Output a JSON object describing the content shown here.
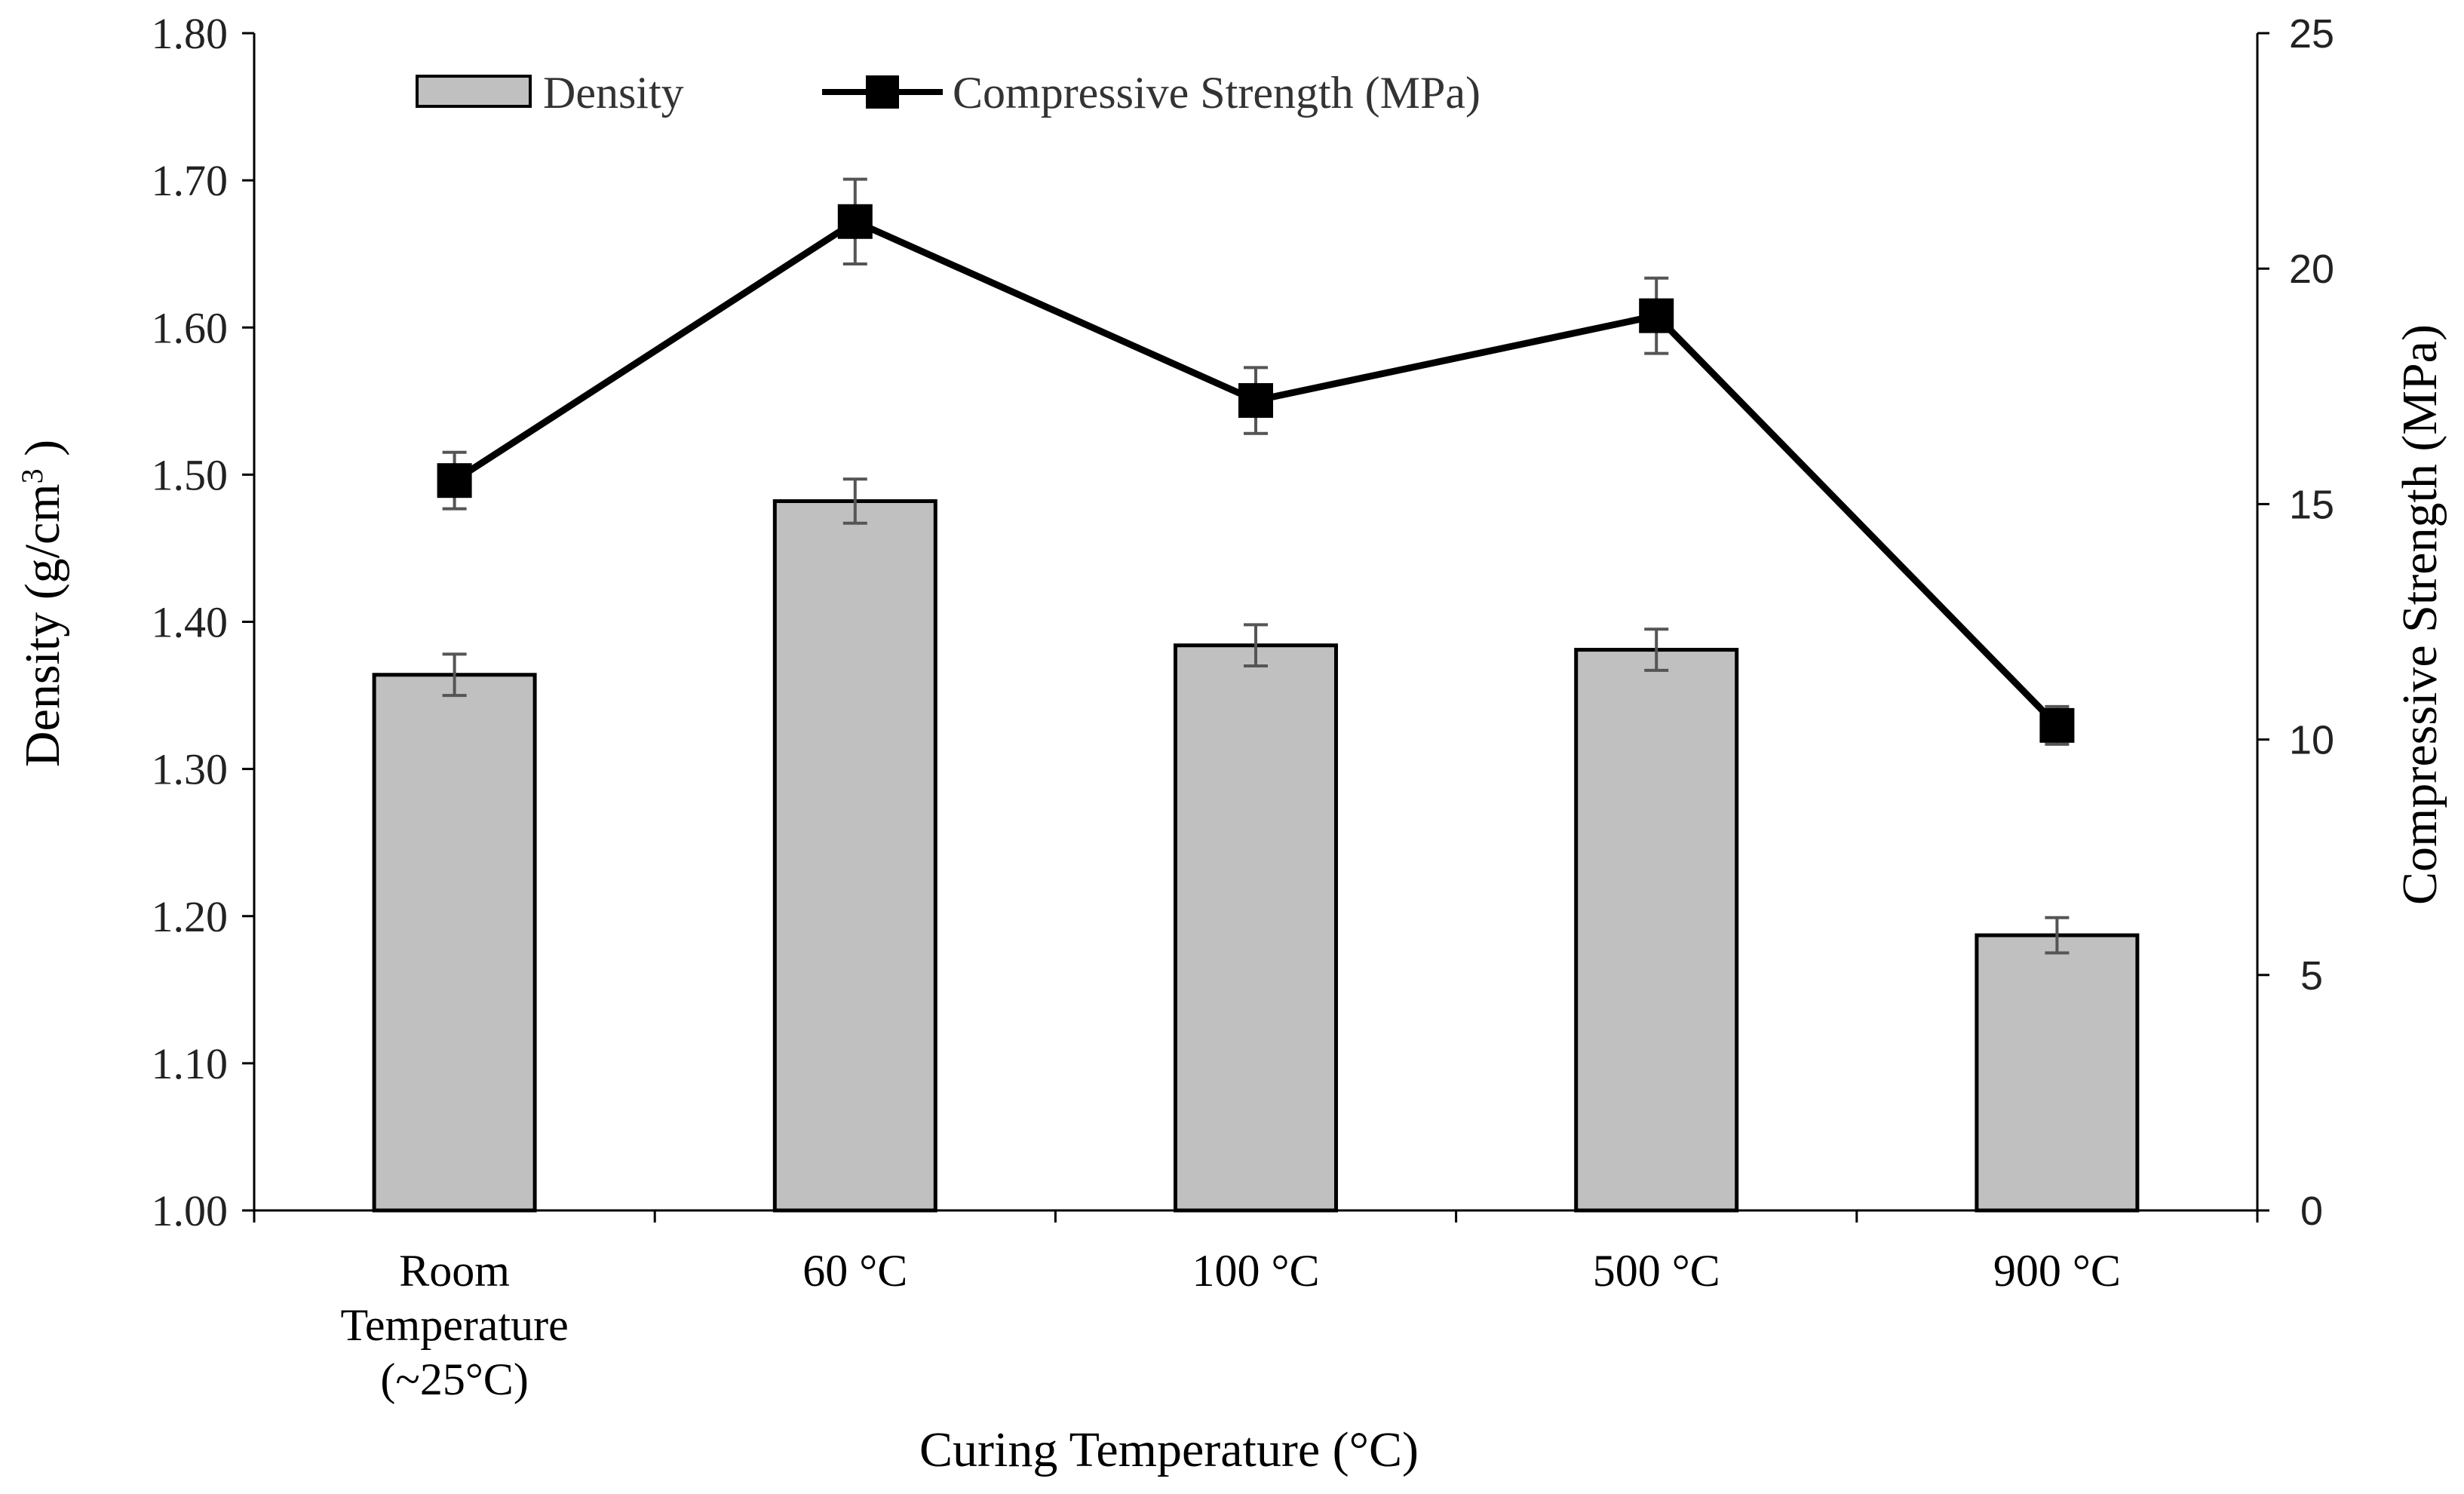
{
  "chart_data": {
    "type": "bar",
    "title": "",
    "categories": [
      [
        "Room",
        "Temperature",
        "(~25°C)"
      ],
      [
        "60 °C"
      ],
      [
        "100 °C"
      ],
      [
        "500 °C"
      ],
      [
        "900 °C"
      ]
    ],
    "xlabel": "Curing Temperature (°C)",
    "ylabel_left": "Density (g/cm",
    "ylabel_left_sup": "3",
    "ylabel_left_tail": " )",
    "ylabel_right": "Compressive Strength (MPa)",
    "ylim_left": [
      1.0,
      1.8
    ],
    "yticks_left": [
      "1.00",
      "1.10",
      "1.20",
      "1.30",
      "1.40",
      "1.50",
      "1.60",
      "1.70",
      "1.80"
    ],
    "ylim_right": [
      0,
      25
    ],
    "yticks_right": [
      "0",
      "5",
      "10",
      "15",
      "20",
      "25"
    ],
    "series": [
      {
        "name": "Density",
        "kind": "bar",
        "axis": "left",
        "values": [
          1.364,
          1.482,
          1.384,
          1.381,
          1.187
        ],
        "errors": [
          0.014,
          0.015,
          0.014,
          0.014,
          0.012
        ],
        "color": "#c0c0c0"
      },
      {
        "name": "Compressive Strength (MPa)",
        "kind": "line",
        "axis": "right",
        "values": [
          15.5,
          21.0,
          17.2,
          19.0,
          10.3
        ],
        "errors": [
          0.6,
          0.9,
          0.7,
          0.8,
          0.4
        ],
        "color": "#000000"
      }
    ],
    "legend": [
      "Density",
      "Compressive Strength (MPa)"
    ],
    "legend_position": "top-left",
    "grid": false
  }
}
